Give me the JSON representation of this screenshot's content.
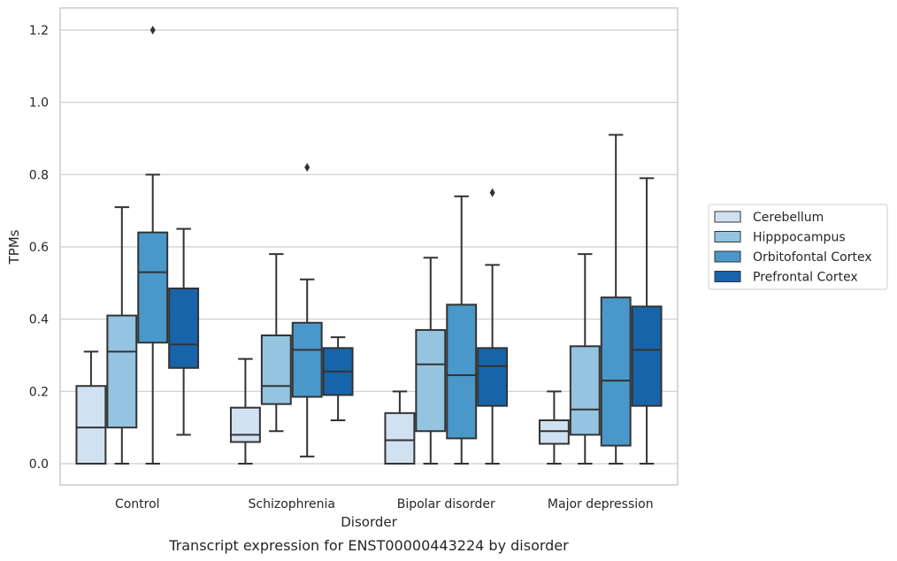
{
  "chart_data": {
    "type": "box",
    "title": "",
    "caption": "Transcript expression for ENST00000443224 by disorder",
    "xlabel": "Disorder",
    "ylabel": "TPMs",
    "ylim": [
      -0.06,
      1.26
    ],
    "yticks": [
      0.0,
      0.2,
      0.4,
      0.6,
      0.8,
      1.0,
      1.2
    ],
    "grid": "horizontal",
    "legend_position": "right",
    "categories": [
      "Control",
      "Schizophrenia",
      "Bipolar disorder",
      "Major depression"
    ],
    "series": [
      {
        "name": "Cerebellum",
        "color": "#d0e1f2",
        "boxes": [
          {
            "whisker_low": 0.0,
            "q1": 0.0,
            "median": 0.1,
            "q3": 0.215,
            "whisker_high": 0.31,
            "outliers": []
          },
          {
            "whisker_low": 0.0,
            "q1": 0.06,
            "median": 0.08,
            "q3": 0.155,
            "whisker_high": 0.29,
            "outliers": []
          },
          {
            "whisker_low": 0.0,
            "q1": 0.0,
            "median": 0.065,
            "q3": 0.14,
            "whisker_high": 0.2,
            "outliers": []
          },
          {
            "whisker_low": 0.0,
            "q1": 0.055,
            "median": 0.09,
            "q3": 0.12,
            "whisker_high": 0.2,
            "outliers": []
          }
        ]
      },
      {
        "name": "Hipppocampus",
        "color": "#94c4df",
        "boxes": [
          {
            "whisker_low": 0.0,
            "q1": 0.1,
            "median": 0.31,
            "q3": 0.41,
            "whisker_high": 0.71,
            "outliers": []
          },
          {
            "whisker_low": 0.09,
            "q1": 0.165,
            "median": 0.215,
            "q3": 0.355,
            "whisker_high": 0.58,
            "outliers": []
          },
          {
            "whisker_low": 0.0,
            "q1": 0.09,
            "median": 0.275,
            "q3": 0.37,
            "whisker_high": 0.57,
            "outliers": []
          },
          {
            "whisker_low": 0.0,
            "q1": 0.08,
            "median": 0.15,
            "q3": 0.325,
            "whisker_high": 0.58,
            "outliers": []
          }
        ]
      },
      {
        "name": "Orbitofontal Cortex",
        "color": "#4a98c9",
        "boxes": [
          {
            "whisker_low": 0.0,
            "q1": 0.335,
            "median": 0.53,
            "q3": 0.64,
            "whisker_high": 0.8,
            "outliers": [
              1.2
            ]
          },
          {
            "whisker_low": 0.02,
            "q1": 0.185,
            "median": 0.315,
            "q3": 0.39,
            "whisker_high": 0.51,
            "outliers": [
              0.82
            ]
          },
          {
            "whisker_low": 0.0,
            "q1": 0.07,
            "median": 0.245,
            "q3": 0.44,
            "whisker_high": 0.74,
            "outliers": []
          },
          {
            "whisker_low": 0.0,
            "q1": 0.05,
            "median": 0.23,
            "q3": 0.46,
            "whisker_high": 0.91,
            "outliers": []
          }
        ]
      },
      {
        "name": "Prefrontal Cortex",
        "color": "#1764ab",
        "boxes": [
          {
            "whisker_low": 0.08,
            "q1": 0.265,
            "median": 0.33,
            "q3": 0.485,
            "whisker_high": 0.65,
            "outliers": []
          },
          {
            "whisker_low": 0.12,
            "q1": 0.19,
            "median": 0.255,
            "q3": 0.32,
            "whisker_high": 0.35,
            "outliers": []
          },
          {
            "whisker_low": 0.0,
            "q1": 0.16,
            "median": 0.27,
            "q3": 0.32,
            "whisker_high": 0.55,
            "outliers": [
              0.75
            ]
          },
          {
            "whisker_low": 0.0,
            "q1": 0.16,
            "median": 0.315,
            "q3": 0.435,
            "whisker_high": 0.79,
            "outliers": []
          }
        ]
      }
    ]
  }
}
